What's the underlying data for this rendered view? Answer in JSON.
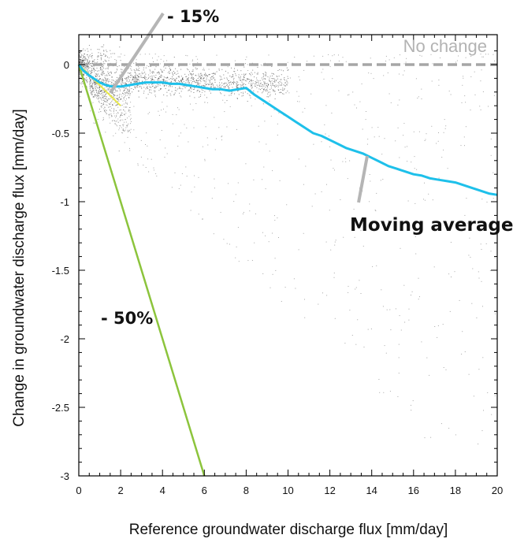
{
  "chart_data": {
    "type": "scatter",
    "xlabel": "Reference groundwater discharge flux [mm/day]",
    "ylabel": "Change in groundwater discharge flux [mm/day]",
    "xlim": [
      0,
      20
    ],
    "ylim": [
      -3,
      0.2
    ],
    "x_ticks": [
      0,
      2,
      4,
      6,
      8,
      10,
      12,
      14,
      16,
      18,
      20
    ],
    "x_tick_labels": [
      "0",
      "2",
      "4",
      "6",
      "8",
      "10",
      "12",
      "14",
      "16",
      "18",
      "20"
    ],
    "y_ticks": [
      0,
      -0.5,
      -1,
      -1.5,
      -2,
      -2.5,
      -3
    ],
    "y_tick_labels": [
      "0",
      "-0.5",
      "-1",
      "-1.5",
      "-2",
      "-2.5",
      "-3"
    ],
    "grid": false,
    "colors": {
      "points": "#222222",
      "no_change": "#a6a6a6",
      "moving_average": "#1ec0ea",
      "minus_50": "#8cc43c",
      "minus_15": "#e8e84a",
      "callout": "#b5b5b5"
    },
    "reference_lines": [
      {
        "label": "No change",
        "slope": 0,
        "style": "dashed",
        "color": "#a6a6a6"
      },
      {
        "label": "- 50%",
        "slope": -0.5,
        "x_range": [
          0,
          6
        ],
        "color": "#8cc43c"
      },
      {
        "label": "- 15%",
        "slope": -0.15,
        "x_range": [
          0,
          2
        ],
        "color": "#e8e84a"
      }
    ],
    "moving_average": {
      "label": "Moving average",
      "x": [
        0,
        0.2,
        0.5,
        0.8,
        1.0,
        1.3,
        1.6,
        2.0,
        2.4,
        2.8,
        3.2,
        3.6,
        4.0,
        4.4,
        4.8,
        5.2,
        5.6,
        6.0,
        6.4,
        6.8,
        7.2,
        7.6,
        8.0,
        8.4,
        8.8,
        9.2,
        9.6,
        10.0,
        10.4,
        10.8,
        11.2,
        11.6,
        12.0,
        12.4,
        12.8,
        13.2,
        13.6,
        14.0,
        14.4,
        14.8,
        15.2,
        15.6,
        16.0,
        16.4,
        16.8,
        17.2,
        17.6,
        18.0,
        18.4,
        18.8,
        19.2,
        19.6,
        20.0
      ],
      "y": [
        0,
        -0.04,
        -0.08,
        -0.11,
        -0.13,
        -0.15,
        -0.16,
        -0.16,
        -0.15,
        -0.14,
        -0.13,
        -0.13,
        -0.13,
        -0.14,
        -0.14,
        -0.15,
        -0.16,
        -0.17,
        -0.18,
        -0.18,
        -0.19,
        -0.18,
        -0.17,
        -0.22,
        -0.26,
        -0.3,
        -0.34,
        -0.38,
        -0.42,
        -0.46,
        -0.5,
        -0.52,
        -0.55,
        -0.58,
        -0.61,
        -0.63,
        -0.65,
        -0.68,
        -0.71,
        -0.74,
        -0.76,
        -0.78,
        -0.8,
        -0.81,
        -0.83,
        -0.84,
        -0.85,
        -0.86,
        -0.88,
        -0.9,
        -0.92,
        -0.94,
        -0.95
      ]
    },
    "scatter_description_values": {
      "point_count": 2600
    }
  },
  "annotations": {
    "no_change": "No change",
    "minus_15": "- 15%",
    "minus_50": "- 50%",
    "moving_average": "Moving average"
  }
}
